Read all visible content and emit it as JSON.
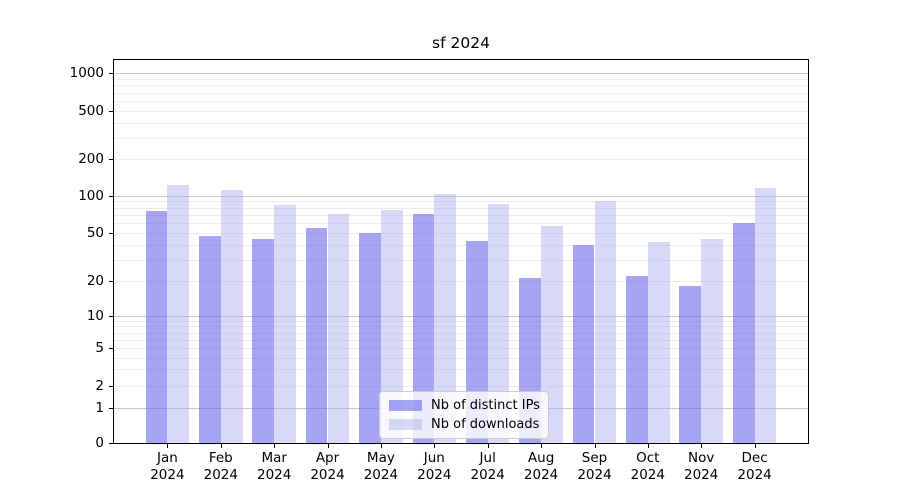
{
  "chart_data": {
    "type": "bar",
    "title": "sf 2024",
    "categories": [
      "Jan 2024",
      "Feb 2024",
      "Mar 2024",
      "Apr 2024",
      "May 2024",
      "Jun 2024",
      "Jul 2024",
      "Aug 2024",
      "Sep 2024",
      "Oct 2024",
      "Nov 2024",
      "Dec 2024"
    ],
    "series": [
      {
        "name": "Nb of distinct IPs",
        "color": "#6e6eee",
        "opacity": 0.62,
        "values": [
          75,
          47,
          44,
          55,
          50,
          71,
          43,
          21,
          40,
          22,
          18,
          60
        ]
      },
      {
        "name": "Nb of downloads",
        "color": "#aaaaee",
        "opacity": 0.45,
        "values": [
          122,
          112,
          84,
          71,
          76,
          104,
          86,
          57,
          90,
          42,
          44,
          115
        ]
      }
    ],
    "yscale": "symlog",
    "yticks": [
      0,
      1,
      2,
      5,
      10,
      20,
      50,
      100,
      200,
      500,
      1000
    ],
    "ylim": [
      0,
      1300
    ],
    "xlabel": "",
    "ylabel": "",
    "grid": true,
    "legend_position": "lower center"
  },
  "colors": {
    "grid_major": "#c9c9c9",
    "grid_minor": "#ececeb",
    "spine": "#000000",
    "text": "#000000",
    "legend_border": "#cccccc",
    "legend_background": "rgba(255,255,255,0.8)"
  }
}
